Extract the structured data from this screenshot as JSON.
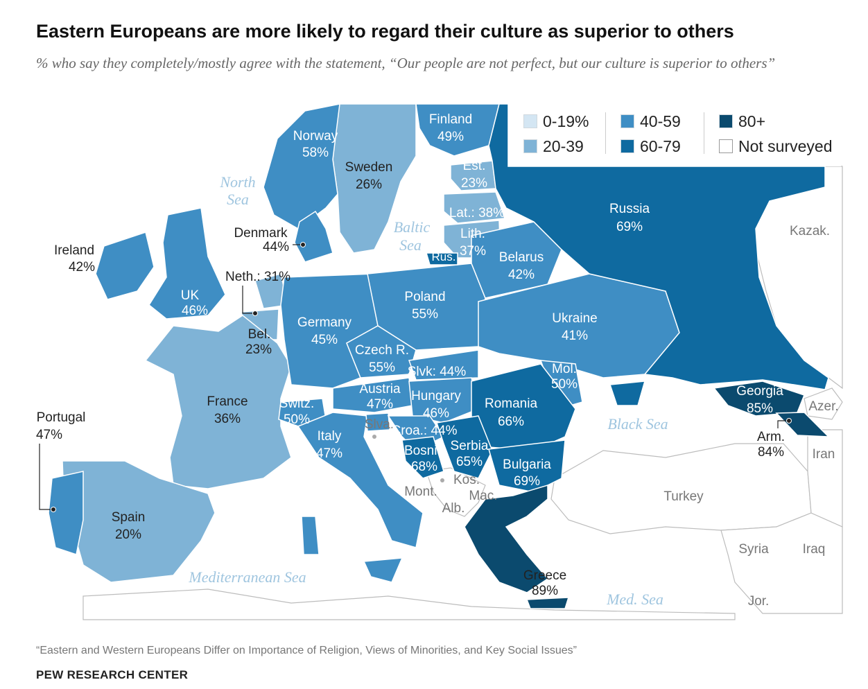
{
  "title": "Eastern Europeans are more likely to regard their culture as superior to others",
  "subtitle": "% who say they completely/mostly agree with the statement, “Our people are not perfect, but our culture is superior to others”",
  "legend": [
    {
      "label": "0-19%",
      "color": "#d4e6f3"
    },
    {
      "label": "20-39",
      "color": "#7fb3d6"
    },
    {
      "label": "40-59",
      "color": "#3f8ec4"
    },
    {
      "label": "60-79",
      "color": "#0f6aa0"
    },
    {
      "label": "80+",
      "color": "#0b4a6e"
    },
    {
      "label": "Not surveyed",
      "color": "#ffffff"
    }
  ],
  "countries": {
    "norway": {
      "name": "Norway",
      "value": "58%"
    },
    "sweden": {
      "name": "Sweden",
      "value": "26%"
    },
    "finland": {
      "name": "Finland",
      "value": "49%"
    },
    "estonia": {
      "name": "Est.",
      "value": "23%"
    },
    "latvia": {
      "name": "Lat.: 38%"
    },
    "lithuania": {
      "name": "Lith.",
      "value": "37%"
    },
    "russia_k": {
      "name": "Rus."
    },
    "russia": {
      "name": "Russia",
      "value": "69%"
    },
    "belarus": {
      "name": "Belarus",
      "value": "42%"
    },
    "denmark": {
      "name": "Denmark",
      "value": "44%"
    },
    "ireland": {
      "name": "Ireland",
      "value": "42%"
    },
    "uk": {
      "name": "UK",
      "value": "46%"
    },
    "netherlands": {
      "name": "Neth.: 31%"
    },
    "belgium": {
      "name": "Bel.",
      "value": "23%"
    },
    "germany": {
      "name": "Germany",
      "value": "45%"
    },
    "poland": {
      "name": "Poland",
      "value": "55%"
    },
    "ukraine": {
      "name": "Ukraine",
      "value": "41%"
    },
    "czech": {
      "name": "Czech R.",
      "value": "55%"
    },
    "slovakia": {
      "name": "Slvk: 44%"
    },
    "moldova": {
      "name": "Mol.",
      "value": "50%"
    },
    "france": {
      "name": "France",
      "value": "36%"
    },
    "switzerland": {
      "name": "Switz.",
      "value": "50%"
    },
    "austria": {
      "name": "Austria",
      "value": "47%"
    },
    "hungary": {
      "name": "Hungary",
      "value": "46%"
    },
    "romania": {
      "name": "Romania",
      "value": "66%"
    },
    "georgia": {
      "name": "Georgia",
      "value": "85%"
    },
    "armenia": {
      "name": "Arm.",
      "value": "84%"
    },
    "portugal": {
      "name": "Portugal",
      "value": "47%"
    },
    "italy": {
      "name": "Italy",
      "value": "47%"
    },
    "slovenia": {
      "name": "Slva."
    },
    "croatia": {
      "name": "Croa.: 44%"
    },
    "bosnia": {
      "name": "Bosnia",
      "value": "68%"
    },
    "serbia": {
      "name": "Serbia",
      "value": "65%"
    },
    "bulgaria": {
      "name": "Bulgaria",
      "value": "69%"
    },
    "spain": {
      "name": "Spain",
      "value": "20%"
    },
    "greece": {
      "name": "Greece",
      "value": "89%"
    }
  },
  "not_surveyed": {
    "kazakhstan": "Kazak.",
    "azerbaijan": "Azer.",
    "iran": "Iran",
    "turkey": "Turkey",
    "syria": "Syria",
    "iraq": "Iraq",
    "jordan": "Jor.",
    "kosovo": "Kos.",
    "montenegro": "Mont.",
    "macedonia": "Mac.",
    "albania": "Alb."
  },
  "seas": {
    "north_1": "North",
    "north_2": "Sea",
    "baltic_1": "Baltic",
    "baltic_2": "Sea",
    "black": "Black Sea",
    "mediterranean": "Mediterranean Sea",
    "med": "Med. Sea"
  },
  "note": "“Eastern and Western Europeans Differ on Importance of Religion, Views of Minorities, and Key Social Issues”",
  "source": "PEW RESEARCH CENTER"
}
